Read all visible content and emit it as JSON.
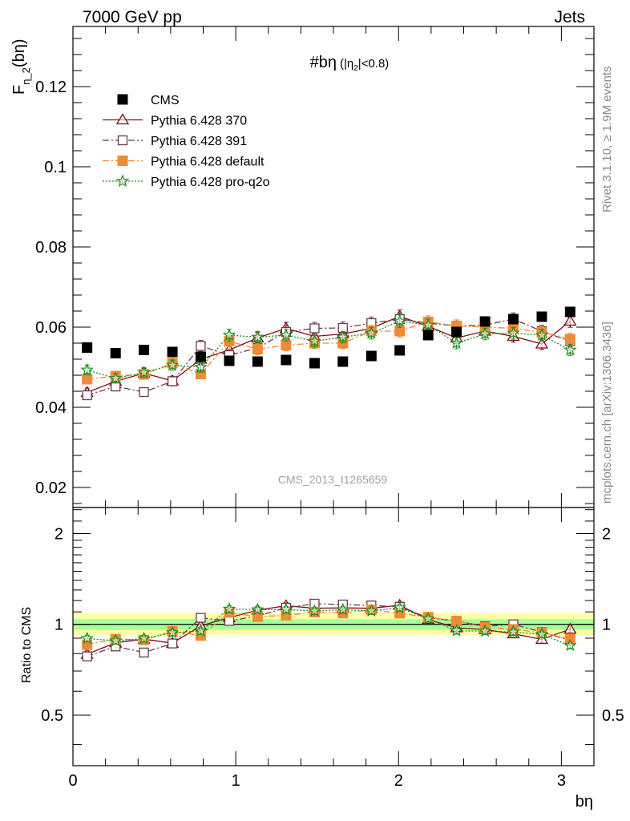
{
  "header": {
    "left": "7000 GeV pp",
    "right": "Jets"
  },
  "side_text": {
    "rivet": "Rivet 3.1.10, ≥ 1.9M events",
    "mcplots": "mcplots.cern.ch [arXiv:1306.3436]"
  },
  "plot_title": {
    "main": "#bη",
    "sub_prefix": "(|η",
    "sub_index": "2",
    "sub_suffix": "|<0.8)"
  },
  "watermark": "CMS_2013_I1265659",
  "axes": {
    "ylabel_main_prefix": "F",
    "ylabel_main_sub": "η_2",
    "ylabel_main_suffix": "(bη)",
    "ylabel_ratio": "Ratio to CMS",
    "xlabel": "bη"
  },
  "chart_data": {
    "type": "scatter",
    "x": [
      0.087,
      0.262,
      0.436,
      0.611,
      0.785,
      0.96,
      1.134,
      1.309,
      1.484,
      1.658,
      1.833,
      2.007,
      2.182,
      2.356,
      2.531,
      2.705,
      2.88,
      3.054
    ],
    "main": {
      "xlim": [
        0,
        3.2
      ],
      "ylim": [
        0.015,
        0.135
      ],
      "yticks": [
        0.02,
        0.04,
        0.06,
        0.08,
        0.1,
        0.12
      ],
      "ytick_labels": [
        "0.02",
        "0.04",
        "0.06",
        "0.08",
        "0.1",
        "0.12"
      ],
      "xticks": [
        0,
        1,
        2,
        3
      ],
      "xtick_labels": [
        "0",
        "1",
        "2",
        "3"
      ]
    },
    "ratio": {
      "ylim": [
        0.34,
        2.44
      ],
      "log_scale": true,
      "yticks": [
        0.5,
        1,
        2
      ],
      "ytick_labels": [
        "0.5",
        "1",
        "2"
      ],
      "band_yellow": [
        0.92,
        1.09
      ],
      "band_green": [
        0.96,
        1.04
      ]
    },
    "series": [
      {
        "name": "CMS",
        "color": "#000000",
        "marker": "square-filled",
        "line": "none",
        "values": [
          0.0549,
          0.0535,
          0.0543,
          0.0538,
          0.0526,
          0.0516,
          0.0514,
          0.0518,
          0.051,
          0.0514,
          0.0528,
          0.0542,
          0.058,
          0.0588,
          0.0614,
          0.062,
          0.0626,
          0.0638
        ]
      },
      {
        "name": "Pythia 6.428 370",
        "color": "#7b0e14",
        "marker": "triangle-open",
        "line": "solid",
        "values": [
          0.0437,
          0.0465,
          0.0485,
          0.0466,
          0.052,
          0.0543,
          0.0573,
          0.0597,
          0.0577,
          0.0583,
          0.0597,
          0.0627,
          0.0602,
          0.0573,
          0.059,
          0.0577,
          0.0558,
          0.0615
        ]
      },
      {
        "name": "Pythia 6.428 391",
        "color": "#6e3a4e",
        "marker": "square-open",
        "line": "dashdot",
        "values": [
          0.043,
          0.0452,
          0.0438,
          0.0465,
          0.0553,
          0.053,
          0.0548,
          0.0588,
          0.0597,
          0.0598,
          0.061,
          0.062,
          0.061,
          0.0603,
          0.0605,
          0.062,
          0.059,
          0.0565
        ]
      },
      {
        "name": "Pythia 6.428 default",
        "color": "#f08a34",
        "marker": "square-filled",
        "line": "dashdot",
        "values": [
          0.047,
          0.0478,
          0.0482,
          0.051,
          0.0483,
          0.0565,
          0.0545,
          0.0555,
          0.056,
          0.056,
          0.059,
          0.059,
          0.0613,
          0.0603,
          0.06,
          0.0597,
          0.0587,
          0.057
        ]
      },
      {
        "name": "Pythia 6.428 pro-q2o",
        "color": "#1a8c1a",
        "marker": "star-open",
        "line": "dotted",
        "values": [
          0.0493,
          0.0472,
          0.0487,
          0.0505,
          0.05,
          0.058,
          0.0575,
          0.058,
          0.0565,
          0.0575,
          0.0585,
          0.0615,
          0.0605,
          0.056,
          0.0583,
          0.0585,
          0.058,
          0.0543
        ]
      }
    ]
  }
}
